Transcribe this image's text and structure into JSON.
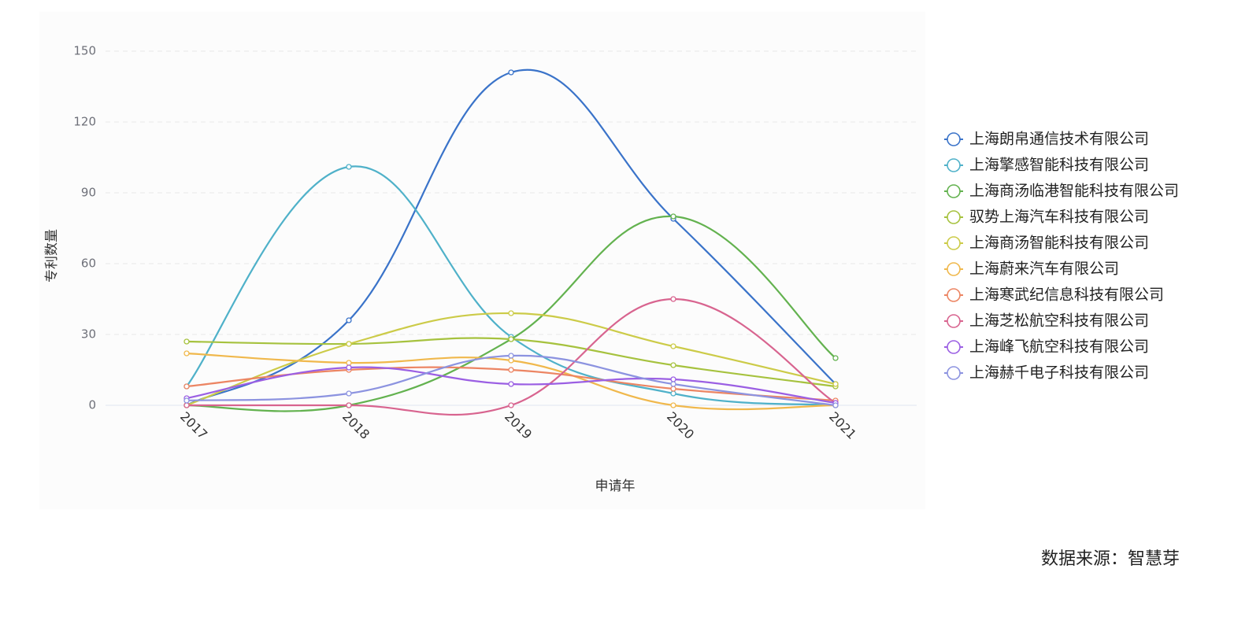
{
  "chart_data": {
    "type": "line",
    "categories": [
      "2017",
      "2018",
      "2019",
      "2020",
      "2021"
    ],
    "x_label": "申请年",
    "y_label": "专利数量",
    "ylim": [
      0,
      150
    ],
    "yticks": [
      0,
      30,
      60,
      90,
      120,
      150
    ],
    "grid": true,
    "smooth": true,
    "legend": "right",
    "source": "数据来源：智慧芽",
    "series": [
      {
        "name": "上海朗帛通信技术有限公司",
        "color": "#3a73c9",
        "values": [
          0,
          36,
          141,
          79,
          9
        ]
      },
      {
        "name": "上海擎感智能科技有限公司",
        "color": "#4fb1c9",
        "values": [
          8,
          101,
          29,
          5,
          0
        ]
      },
      {
        "name": "上海商汤临港智能科技有限公司",
        "color": "#63b24f",
        "values": [
          0,
          0,
          28,
          80,
          20
        ]
      },
      {
        "name": "驭势上海汽车科技有限公司",
        "color": "#a6c23e",
        "values": [
          27,
          26,
          28,
          17,
          8
        ]
      },
      {
        "name": "上海商汤智能科技有限公司",
        "color": "#cccb48",
        "values": [
          0,
          26,
          39,
          25,
          9
        ]
      },
      {
        "name": "上海蔚来汽车有限公司",
        "color": "#f0b84c",
        "values": [
          22,
          18,
          19,
          0,
          0
        ]
      },
      {
        "name": "上海寒武纪信息科技有限公司",
        "color": "#ec8563",
        "values": [
          8,
          15,
          15,
          7,
          2
        ]
      },
      {
        "name": "上海芝松航空科技有限公司",
        "color": "#d8648f",
        "values": [
          0,
          0,
          0,
          45,
          1
        ]
      },
      {
        "name": "上海峰飞航空科技有限公司",
        "color": "#9b5fe3",
        "values": [
          3,
          16,
          9,
          11,
          1
        ]
      },
      {
        "name": "上海赫千电子科技有限公司",
        "color": "#8c93e0",
        "values": [
          2,
          5,
          21,
          9,
          0
        ]
      }
    ]
  }
}
